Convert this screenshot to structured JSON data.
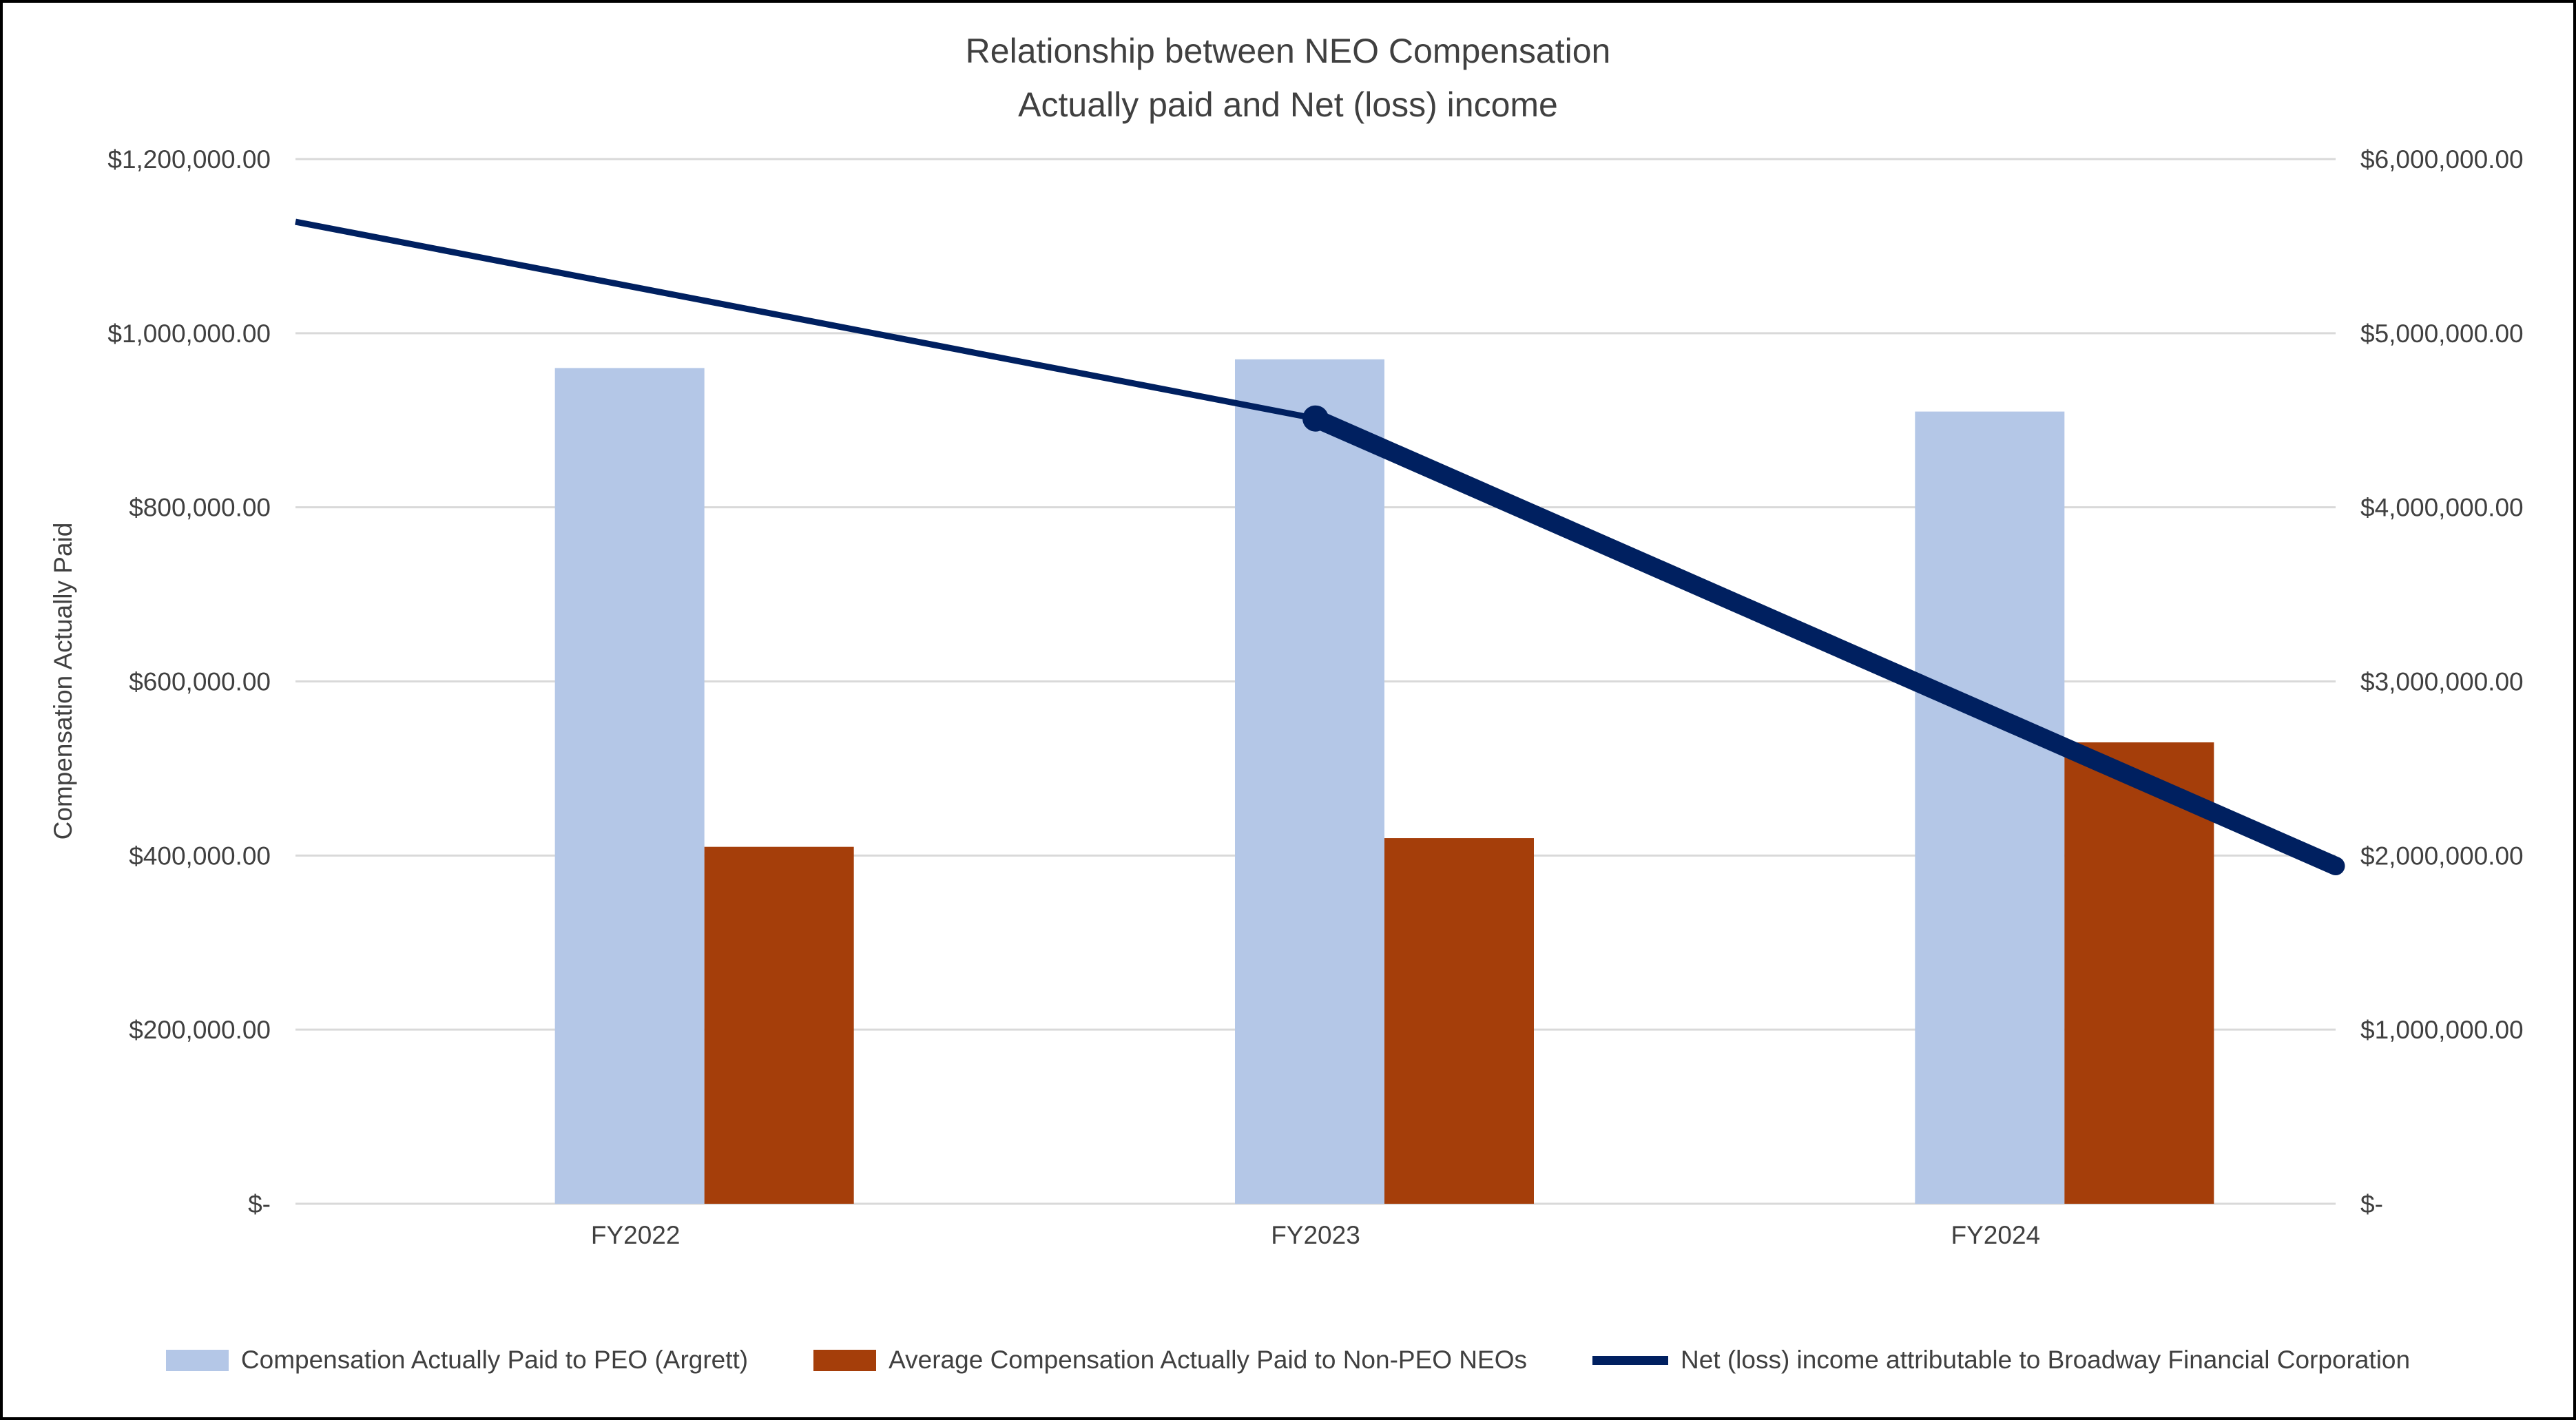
{
  "title": {
    "line1": "Relationship between NEO Compensation",
    "line2": "Actually paid and Net (loss) income"
  },
  "chart_data": {
    "type": "combo",
    "categories": [
      "FY2022",
      "FY2023",
      "FY2024"
    ],
    "series": [
      {
        "name": "Compensation Actually Paid to PEO (Argrett)",
        "type": "bar",
        "axis": "left",
        "color": "#B4C7E7",
        "values": [
          960000,
          970000,
          910000
        ]
      },
      {
        "name": "Average Compensation Actually Paid to Non-PEO NEOs",
        "type": "bar",
        "axis": "left",
        "color": "#A53E0A",
        "values": [
          410000,
          420000,
          530000
        ]
      },
      {
        "name": "Net (loss) income attributable to Broadway Financial Corporation",
        "type": "line",
        "axis": "right",
        "color": "#002060",
        "values": [
          5640000,
          4510000,
          1940000
        ]
      }
    ],
    "left_axis": {
      "title": "Compensation Actually Paid",
      "min": 0,
      "max": 1200000,
      "tick_interval": 200000,
      "tick_labels": [
        "$-",
        "$200,000.00",
        "$400,000.00",
        "$600,000.00",
        "$800,000.00",
        "$1,000,000.00",
        "$1,200,000.00"
      ]
    },
    "right_axis": {
      "min": 0,
      "max": 6000000,
      "tick_interval": 1000000,
      "tick_labels": [
        "$-",
        "$1,000,000.00",
        "$2,000,000.00",
        "$3,000,000.00",
        "$4,000,000.00",
        "$5,000,000.00",
        "$6,000,000.00"
      ]
    },
    "gridlines": {
      "show": true,
      "color": "#D9D9D9"
    },
    "legend_position": "bottom",
    "text_color": "#404040"
  }
}
